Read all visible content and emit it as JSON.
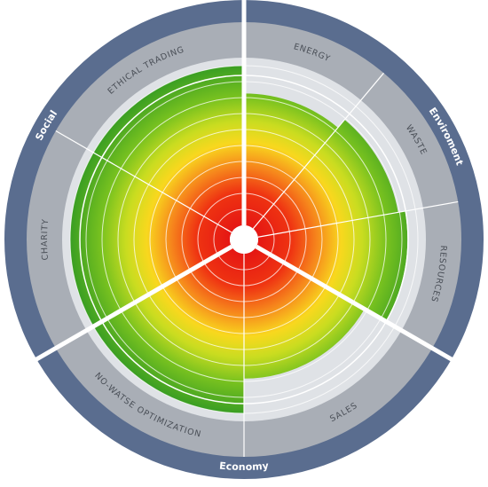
{
  "diagram": {
    "categories": [
      {
        "label": "Social",
        "arc_center_deg": -60
      },
      {
        "label": "Enviroment",
        "arc_center_deg": 63
      },
      {
        "label": "Economy",
        "arc_center_deg": 180
      }
    ],
    "sectors": [
      {
        "label": "ETHICAL TRADING",
        "angle_start": -60,
        "angle_end": 0,
        "level": 1.0
      },
      {
        "label": "ENERGY",
        "angle_start": 0,
        "angle_end": 40,
        "level": 0.84
      },
      {
        "label": "WASTE",
        "angle_start": 40,
        "angle_end": 80,
        "level": 0.9
      },
      {
        "label": "RESOURCES",
        "angle_start": 80,
        "angle_end": 120,
        "level": 0.94
      },
      {
        "label": "SALES",
        "angle_start": 120,
        "angle_end": 180,
        "level": 0.8
      },
      {
        "label": "NO-WATSE OPTIMIZATION",
        "angle_start": 180,
        "angle_end": 240,
        "level": 1.0
      },
      {
        "label": "CHARITY",
        "angle_start": 240,
        "angle_end": 300,
        "level": 1.0
      }
    ],
    "ring_count": 10,
    "colors": {
      "outer_band": "#5a6d8f",
      "sector_band": "#a9aeb6",
      "inner_band": "#dfe2e6",
      "divider": "#ffffff",
      "scale_center": "#e8101a",
      "scale_mid": "#f9e619",
      "scale_outer": "#3a9e23"
    }
  }
}
